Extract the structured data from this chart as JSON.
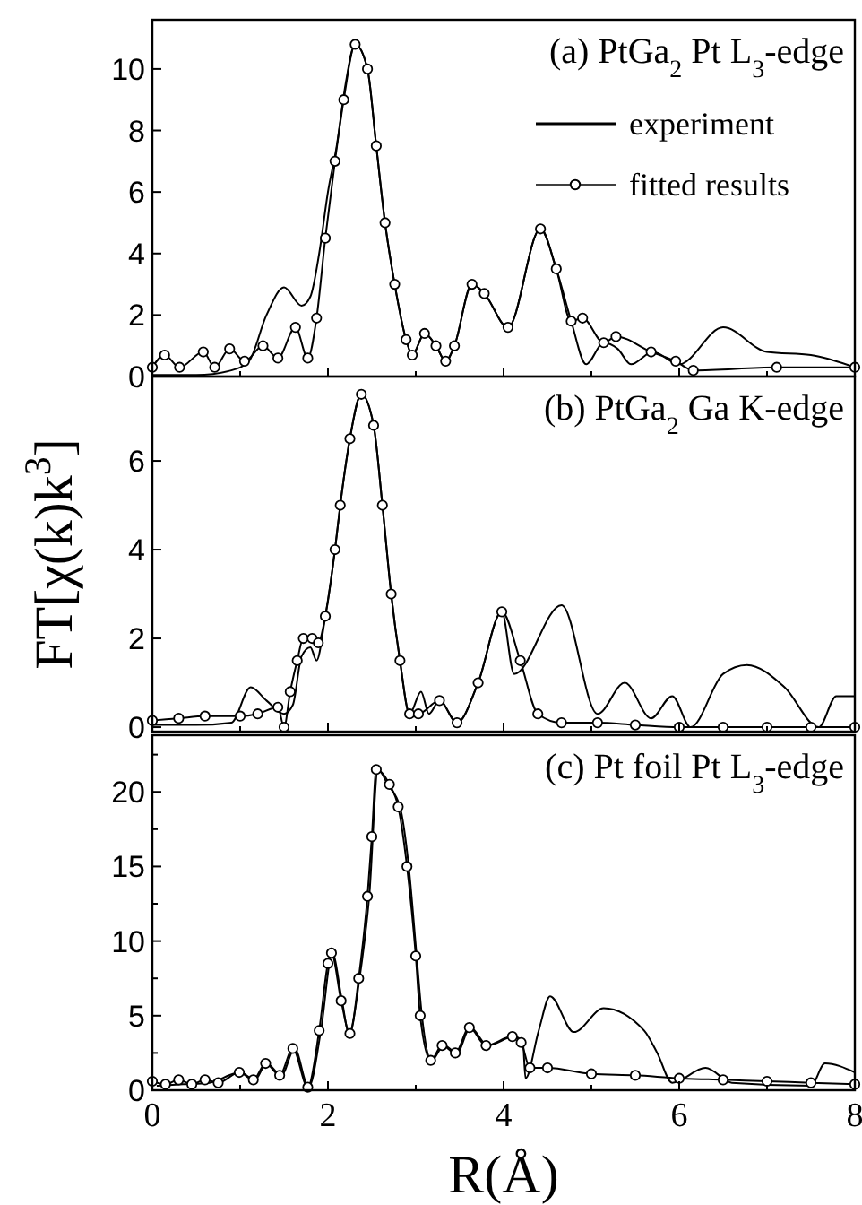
{
  "chart_data": [
    {
      "type": "line",
      "title": "(a) PtGa$_{2}$ Pt L$_{3}$-edge",
      "xlim": [
        0,
        8
      ],
      "ylim": [
        0,
        11.6
      ],
      "xticks": [
        0,
        {
          "value": 1,
          "label": null
        },
        2,
        {
          "value": 3,
          "label": null
        },
        4,
        {
          "value": 5,
          "label": null
        },
        6,
        {
          "value": 7,
          "label": null
        },
        8
      ],
      "yticks": [
        0,
        2,
        4,
        6,
        8,
        10
      ],
      "tick_labels": "y",
      "legend": "top right",
      "grid": false,
      "series": [
        {
          "name": "experiment",
          "color": "#000000",
          "marker": "none",
          "line_style": "solid",
          "x": [
            0,
            0.5,
            0.9,
            1.1,
            1.3,
            1.5,
            1.7,
            1.8,
            1.9,
            2.0,
            2.1,
            2.2,
            2.31,
            2.45,
            2.55,
            2.65,
            2.76,
            2.89,
            2.96,
            3.1,
            3.23,
            3.34,
            3.44,
            3.64,
            3.78,
            4.05,
            4.42,
            4.6,
            4.77,
            4.94,
            5.14,
            5.3,
            5.45,
            5.7,
            6.0,
            6.5,
            7.0,
            7.5,
            8.0
          ],
          "values": [
            0.05,
            0.05,
            0.2,
            0.5,
            2.0,
            2.9,
            2.3,
            2.6,
            4.0,
            6.0,
            7.5,
            9.5,
            10.8,
            10.0,
            7.5,
            5.0,
            3.0,
            1.2,
            0.7,
            1.4,
            1.0,
            0.5,
            1.0,
            3.0,
            2.7,
            1.6,
            4.8,
            3.5,
            1.8,
            0.4,
            1.1,
            0.9,
            0.4,
            0.8,
            0.4,
            1.6,
            0.8,
            0.7,
            0.3
          ]
        },
        {
          "name": "fitted results",
          "color": "#000000",
          "marker": "circle",
          "line_style": "solid",
          "x": [
            0,
            0.14,
            0.31,
            0.58,
            0.71,
            0.88,
            1.05,
            1.26,
            1.43,
            1.63,
            1.77,
            1.87,
            1.97,
            2.08,
            2.18,
            2.31,
            2.45,
            2.55,
            2.65,
            2.76,
            2.89,
            2.96,
            3.1,
            3.23,
            3.34,
            3.44,
            3.64,
            3.78,
            4.05,
            4.42,
            4.6,
            4.77,
            4.9,
            5.14,
            5.28,
            5.68,
            5.96,
            6.16,
            7.11,
            8.0
          ],
          "values": [
            0.3,
            0.7,
            0.3,
            0.8,
            0.3,
            0.9,
            0.5,
            1.0,
            0.6,
            1.6,
            0.6,
            1.9,
            4.5,
            7.0,
            9.0,
            10.8,
            10.0,
            7.5,
            5.0,
            3.0,
            1.2,
            0.7,
            1.4,
            1.0,
            0.5,
            1.0,
            3.0,
            2.7,
            1.6,
            4.8,
            3.5,
            1.8,
            1.9,
            1.1,
            1.3,
            0.8,
            0.5,
            0.2,
            0.3,
            0.3
          ]
        }
      ]
    },
    {
      "type": "line",
      "title": "(b) PtGa$_{2}$ Ga K-edge",
      "ylabel": "FT[χ(k)k$^{3}$]",
      "xlim": [
        0,
        8
      ],
      "ylim": [
        -0.1,
        7.9
      ],
      "xticks": [
        0,
        {
          "value": 1,
          "label": null
        },
        2,
        {
          "value": 3,
          "label": null
        },
        4,
        {
          "value": 5,
          "label": null
        },
        6,
        {
          "value": 7,
          "label": null
        },
        8
      ],
      "yticks": [
        0,
        2,
        4,
        6
      ],
      "tick_labels": "y",
      "grid": false,
      "series": [
        {
          "color": "#000000",
          "marker": "none",
          "line_style": "solid",
          "x": [
            0,
            0.5,
            0.9,
            1.12,
            1.3,
            1.5,
            1.6,
            1.7,
            1.8,
            1.87,
            1.97,
            2.08,
            2.14,
            2.25,
            2.38,
            2.52,
            2.62,
            2.72,
            2.82,
            2.93,
            3.06,
            3.15,
            3.27,
            3.47,
            3.71,
            3.98,
            4.12,
            4.66,
            5.07,
            5.38,
            5.68,
            5.92,
            6.13,
            6.5,
            6.77,
            7.2,
            7.59,
            7.79,
            8.0
          ],
          "values": [
            0.05,
            0.05,
            0.1,
            0.9,
            0.6,
            0.3,
            0.5,
            1.6,
            1.8,
            1.5,
            2.5,
            4.0,
            5.0,
            6.5,
            7.5,
            6.8,
            5.0,
            3.0,
            1.5,
            0.3,
            0.8,
            0.3,
            0.6,
            0.1,
            1.0,
            2.6,
            1.2,
            2.75,
            0.3,
            1.0,
            0.2,
            0.7,
            0.0,
            1.2,
            1.4,
            0.9,
            0.0,
            0.7,
            0.7
          ]
        },
        {
          "color": "#000000",
          "marker": "circle",
          "line_style": "solid",
          "x": [
            0,
            0.3,
            0.6,
            1.0,
            1.2,
            1.43,
            1.5,
            1.57,
            1.65,
            1.72,
            1.82,
            1.89,
            1.97,
            2.08,
            2.14,
            2.25,
            2.38,
            2.52,
            2.62,
            2.72,
            2.82,
            2.93,
            3.03,
            3.27,
            3.47,
            3.71,
            3.98,
            4.19,
            4.39,
            4.66,
            5.07,
            5.5,
            6.0,
            6.5,
            7.0,
            7.5,
            8.0
          ],
          "values": [
            0.15,
            0.2,
            0.25,
            0.25,
            0.3,
            0.45,
            0.0,
            0.8,
            1.5,
            2.0,
            2.0,
            1.9,
            2.5,
            4.0,
            5.0,
            6.5,
            7.5,
            6.8,
            5.0,
            3.0,
            1.5,
            0.3,
            0.3,
            0.6,
            0.1,
            1.0,
            2.6,
            1.5,
            0.3,
            0.1,
            0.1,
            0.05,
            0.0,
            0.0,
            0.0,
            0.0,
            0.0
          ]
        }
      ]
    },
    {
      "type": "line",
      "title": "(c) Pt foil Pt L$_{3}$-edge",
      "xlabel": "R(Å)",
      "xlim": [
        0,
        8
      ],
      "ylim": [
        0,
        23.8
      ],
      "xticks": [
        0,
        {
          "value": 1,
          "label": null
        },
        2,
        {
          "value": 3,
          "label": null
        },
        4,
        {
          "value": 5,
          "label": null
        },
        6,
        {
          "value": 7,
          "label": null
        },
        8
      ],
      "yticks": [
        0,
        {
          "value": 2.5,
          "label": null
        },
        5,
        {
          "value": 7.5,
          "label": null
        },
        10,
        {
          "value": 12.5,
          "label": null
        },
        15,
        {
          "value": 17.5,
          "label": null
        },
        20,
        {
          "value": 22.5,
          "label": null
        }
      ],
      "grid": false,
      "series": [
        {
          "color": "#000000",
          "marker": "none",
          "line_style": "solid",
          "x": [
            0.05,
            0.35,
            0.65,
            1.0,
            1.17,
            1.3,
            1.47,
            1.62,
            1.78,
            1.92,
            2.05,
            2.16,
            2.24,
            2.36,
            2.47,
            2.57,
            2.68,
            2.82,
            2.92,
            3.01,
            3.07,
            3.18,
            3.32,
            3.47,
            3.62,
            3.82,
            4.12,
            4.22,
            4.25,
            4.4,
            4.53,
            4.8,
            5.14,
            5.6,
            5.75,
            5.92,
            6.3,
            6.6,
            7.5,
            7.66,
            8.0
          ],
          "values": [
            0.3,
            0.4,
            0.5,
            1.2,
            0.7,
            1.8,
            1.0,
            2.8,
            0.2,
            4.0,
            9.2,
            6.0,
            3.8,
            7.5,
            13.0,
            21.5,
            20.5,
            19.0,
            15.0,
            9.0,
            5.0,
            2.0,
            3.0,
            2.5,
            4.2,
            3.0,
            3.6,
            3.2,
            0.8,
            4.0,
            6.3,
            3.9,
            5.5,
            4.0,
            2.5,
            0.5,
            1.5,
            0.5,
            0.3,
            1.8,
            1.2
          ]
        },
        {
          "color": "#000000",
          "marker": "circle",
          "line_style": "solid",
          "x": [
            0,
            0.15,
            0.3,
            0.45,
            0.6,
            0.75,
            0.99,
            1.15,
            1.29,
            1.45,
            1.6,
            1.77,
            1.9,
            2.0,
            2.04,
            2.15,
            2.25,
            2.35,
            2.45,
            2.5,
            2.55,
            2.7,
            2.8,
            2.9,
            3.0,
            3.05,
            3.17,
            3.3,
            3.45,
            3.61,
            3.8,
            4.1,
            4.2,
            4.3,
            4.5,
            5.0,
            5.5,
            6.0,
            6.5,
            7.0,
            7.5,
            8.0
          ],
          "values": [
            0.6,
            0.4,
            0.7,
            0.4,
            0.7,
            0.5,
            1.2,
            0.7,
            1.8,
            1.0,
            2.8,
            0.2,
            4.0,
            8.5,
            9.2,
            6.0,
            3.8,
            7.5,
            13.0,
            17.0,
            21.5,
            20.5,
            19.0,
            15.0,
            9.0,
            5.0,
            2.0,
            3.0,
            2.5,
            4.2,
            3.0,
            3.6,
            3.2,
            1.5,
            1.5,
            1.1,
            1.0,
            0.8,
            0.7,
            0.6,
            0.5,
            0.4
          ]
        }
      ]
    }
  ]
}
